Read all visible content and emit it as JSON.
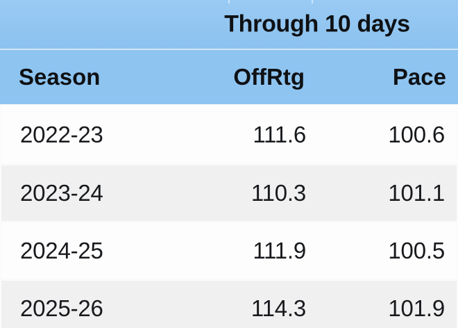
{
  "chart_data": {
    "type": "table",
    "title": "Through 10 days",
    "columns": [
      "Season",
      "OffRtg",
      "Pace"
    ],
    "rows": [
      [
        "2022-23",
        111.6,
        100.6
      ],
      [
        "2023-24",
        110.3,
        101.1
      ],
      [
        "2024-25",
        111.9,
        100.5
      ],
      [
        "2025-26",
        114.3,
        101.9
      ]
    ],
    "layout_hints": {
      "header_spans": "title spans OffRtg and Pace columns",
      "zebra_striping": true,
      "numeric_alignment": "right"
    }
  },
  "table": {
    "header_title": "Through 10 days",
    "columns": {
      "season": "Season",
      "offrtg": "OffRtg",
      "pace": "Pace"
    },
    "rows": [
      {
        "season": "2022-23",
        "offrtg": "111.6",
        "pace": "100.6"
      },
      {
        "season": "2023-24",
        "offrtg": "110.3",
        "pace": "101.1"
      },
      {
        "season": "2024-25",
        "offrtg": "111.9",
        "pace": "100.5"
      },
      {
        "season": "2025-26",
        "offrtg": "114.3",
        "pace": "101.9"
      }
    ],
    "colors": {
      "header_bg": "#8ec4f0",
      "row_bg": "#fdfdfd",
      "row_alt_bg": "#f0f0f1",
      "separator": "#fafafa",
      "text": "#17191c",
      "header_text": "#0f1114"
    }
  }
}
